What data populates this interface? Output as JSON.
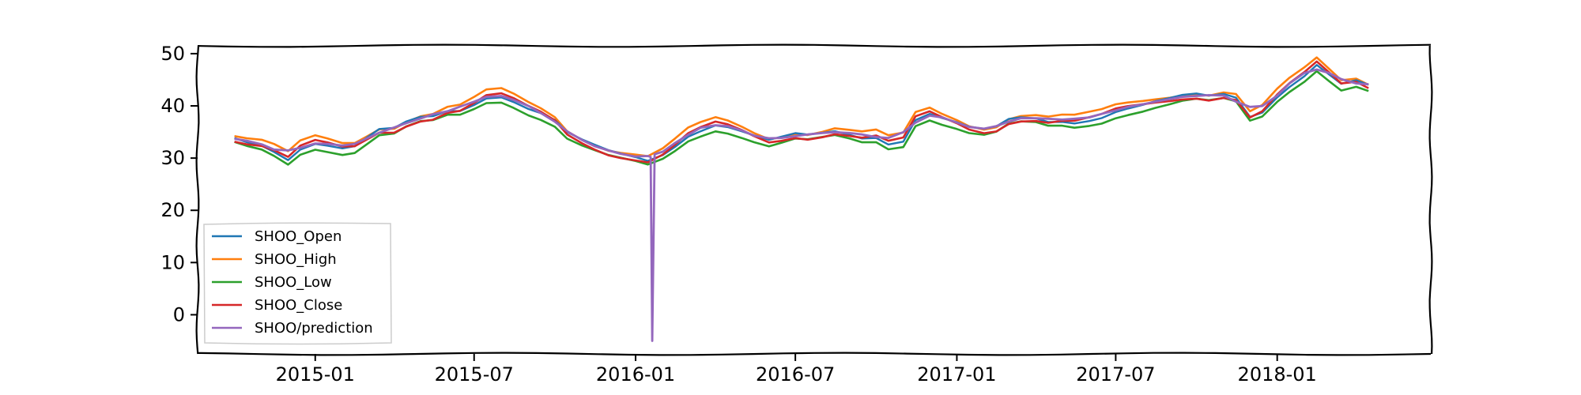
{
  "chart_data": {
    "type": "line",
    "title": "",
    "xlabel": "",
    "ylabel": "",
    "grid": false,
    "legend_position": "lower-left",
    "x_ticks": [
      "2015-01",
      "2015-07",
      "2016-01",
      "2016-07",
      "2017-01",
      "2017-07",
      "2018-01"
    ],
    "y_ticks": [
      0,
      10,
      20,
      30,
      40,
      50
    ],
    "xlim": [
      "2014-08-20",
      "2018-06-25"
    ],
    "ylim": [
      -7.5,
      51.5
    ],
    "series": [
      {
        "name": "SHOO_Open",
        "color": "#1f77b4"
      },
      {
        "name": "SHOO_High",
        "color": "#ff7f0e"
      },
      {
        "name": "SHOO_Low",
        "color": "#2ca02c"
      },
      {
        "name": "SHOO_Close",
        "color": "#d62728"
      },
      {
        "name": "SHOO/prediction",
        "color": "#9467bd"
      }
    ],
    "x": [
      "2014-10-01",
      "2014-10-15",
      "2014-11-01",
      "2014-11-15",
      "2014-12-01",
      "2014-12-15",
      "2015-01-01",
      "2015-01-15",
      "2015-02-01",
      "2015-02-15",
      "2015-03-01",
      "2015-03-15",
      "2015-04-01",
      "2015-04-15",
      "2015-05-01",
      "2015-05-15",
      "2015-06-01",
      "2015-06-15",
      "2015-07-01",
      "2015-07-15",
      "2015-08-01",
      "2015-08-15",
      "2015-09-01",
      "2015-09-15",
      "2015-10-01",
      "2015-10-15",
      "2015-11-01",
      "2015-11-15",
      "2015-12-01",
      "2015-12-15",
      "2016-01-01",
      "2016-01-15",
      "2016-02-01",
      "2016-02-15",
      "2016-03-01",
      "2016-03-15",
      "2016-04-01",
      "2016-04-15",
      "2016-05-01",
      "2016-05-15",
      "2016-06-01",
      "2016-06-15",
      "2016-07-01",
      "2016-07-15",
      "2016-08-01",
      "2016-08-15",
      "2016-09-01",
      "2016-09-15",
      "2016-10-01",
      "2016-10-15",
      "2016-11-01",
      "2016-11-15",
      "2016-12-01",
      "2016-12-15",
      "2017-01-01",
      "2017-01-15",
      "2017-02-01",
      "2017-02-15",
      "2017-03-01",
      "2017-03-15",
      "2017-04-01",
      "2017-04-15",
      "2017-05-01",
      "2017-05-15",
      "2017-06-01",
      "2017-06-15",
      "2017-07-01",
      "2017-07-15",
      "2017-08-01",
      "2017-08-15",
      "2017-09-01",
      "2017-09-15",
      "2017-10-01",
      "2017-10-15",
      "2017-11-01",
      "2017-11-15",
      "2017-12-01",
      "2017-12-15",
      "2018-01-01",
      "2018-01-15",
      "2018-02-01",
      "2018-02-15",
      "2018-03-01",
      "2018-03-15",
      "2018-04-01",
      "2018-04-15"
    ],
    "close": [
      33.6,
      33.0,
      32.5,
      31.5,
      30.0,
      32.0,
      33.0,
      32.5,
      31.8,
      32.0,
      33.5,
      35.0,
      35.2,
      36.5,
      37.5,
      37.8,
      39.0,
      39.2,
      40.5,
      41.8,
      42.0,
      41.0,
      39.5,
      38.5,
      37.0,
      34.5,
      33.0,
      32.0,
      31.0,
      30.5,
      30.0,
      29.5,
      30.8,
      32.5,
      34.5,
      35.5,
      36.5,
      36.0,
      35.0,
      34.0,
      33.0,
      33.5,
      34.2,
      34.0,
      34.5,
      35.0,
      34.5,
      34.0,
      34.2,
      33.0,
      33.5,
      37.5,
      38.5,
      37.5,
      36.5,
      35.5,
      35.0,
      35.5,
      37.0,
      37.5,
      37.5,
      37.0,
      37.2,
      37.0,
      37.5,
      38.0,
      39.0,
      39.5,
      40.0,
      40.5,
      41.0,
      41.5,
      41.8,
      41.5,
      42.0,
      41.5,
      38.0,
      39.0,
      42.0,
      44.0,
      46.0,
      48.0,
      46.0,
      44.0,
      44.5,
      43.5
    ],
    "high_offset": 0.9,
    "low_offset": -0.9,
    "open_offset": 0.1,
    "prediction_offset": 0.3,
    "prediction_anomaly": {
      "x": "2016-01-20",
      "y": -5.0
    }
  }
}
